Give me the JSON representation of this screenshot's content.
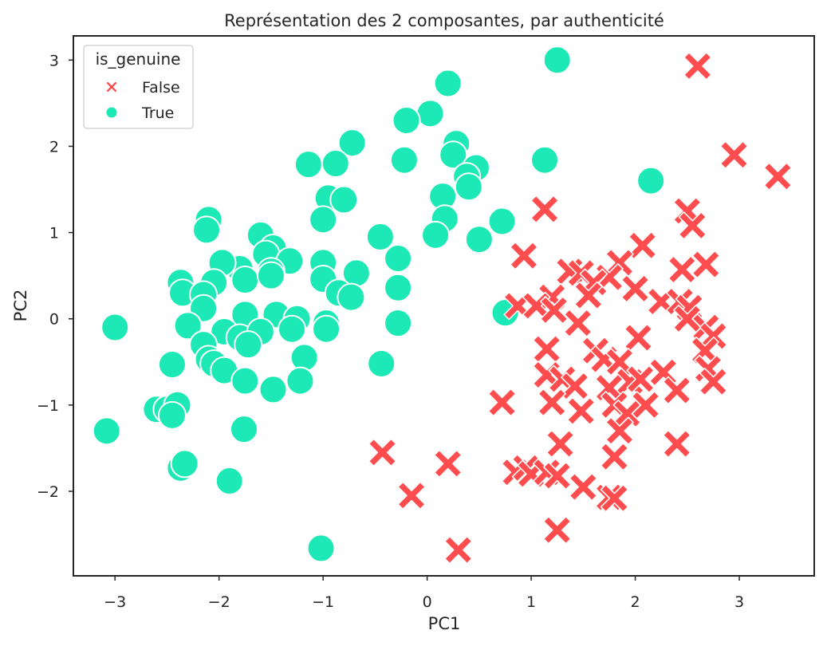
{
  "chart_data": {
    "type": "scatter",
    "title": "Représentation des 2 composantes, par authenticité",
    "xlabel": "PC1",
    "ylabel": "PC2",
    "xlim": [
      -3.4,
      3.72
    ],
    "ylim": [
      -2.98,
      3.28
    ],
    "xticks": [
      -3,
      -2,
      -1,
      0,
      1,
      2,
      3
    ],
    "yticks": [
      -2,
      -1,
      0,
      1,
      2,
      3
    ],
    "xtick_labels": [
      "−3",
      "−2",
      "−1",
      "0",
      "1",
      "2",
      "3"
    ],
    "ytick_labels": [
      "−2",
      "−1",
      "0",
      "1",
      "2",
      "3"
    ],
    "grid": false,
    "legend": {
      "title": "is_genuine",
      "position": "top-left",
      "entries": [
        {
          "label": "False",
          "marker": "x",
          "color": "#ff4d4f"
        },
        {
          "label": "True",
          "marker": "circle",
          "color": "#1de9b6"
        }
      ]
    },
    "series": [
      {
        "name": "True",
        "marker": "circle",
        "color": "#1de9b6",
        "points": [
          [
            1.25,
            3.0
          ],
          [
            0.2,
            2.73
          ],
          [
            0.03,
            2.38
          ],
          [
            -0.2,
            2.3
          ],
          [
            -0.72,
            2.04
          ],
          [
            -0.22,
            1.84
          ],
          [
            0.28,
            2.03
          ],
          [
            0.25,
            1.9
          ],
          [
            0.47,
            1.75
          ],
          [
            0.38,
            1.65
          ],
          [
            -1.14,
            1.79
          ],
          [
            -0.88,
            1.8
          ],
          [
            1.13,
            1.84
          ],
          [
            2.15,
            1.6
          ],
          [
            -0.95,
            1.4
          ],
          [
            -0.8,
            1.38
          ],
          [
            0.4,
            1.53
          ],
          [
            0.15,
            1.42
          ],
          [
            -1.0,
            1.15
          ],
          [
            0.17,
            1.16
          ],
          [
            0.72,
            1.13
          ],
          [
            0.08,
            0.97
          ],
          [
            0.5,
            0.92
          ],
          [
            -2.1,
            1.15
          ],
          [
            -2.12,
            1.03
          ],
          [
            -1.6,
            0.97
          ],
          [
            -0.45,
            0.95
          ],
          [
            -1.48,
            0.82
          ],
          [
            -1.55,
            0.75
          ],
          [
            -1.32,
            0.67
          ],
          [
            -0.28,
            0.7
          ],
          [
            -1.0,
            0.65
          ],
          [
            -1.8,
            0.58
          ],
          [
            -1.97,
            0.65
          ],
          [
            -1.5,
            0.55
          ],
          [
            -0.68,
            0.53
          ],
          [
            -2.37,
            0.42
          ],
          [
            -2.05,
            0.42
          ],
          [
            -1.75,
            0.45
          ],
          [
            -1.5,
            0.5
          ],
          [
            -1.0,
            0.46
          ],
          [
            -0.28,
            0.36
          ],
          [
            -2.35,
            0.3
          ],
          [
            -0.85,
            0.3
          ],
          [
            -2.15,
            0.28
          ],
          [
            -0.73,
            0.25
          ],
          [
            0.75,
            0.07
          ],
          [
            -2.15,
            0.12
          ],
          [
            -1.75,
            0.05
          ],
          [
            -1.45,
            0.05
          ],
          [
            -1.25,
            0.0
          ],
          [
            -0.97,
            -0.05
          ],
          [
            -0.28,
            -0.05
          ],
          [
            -3.0,
            -0.1
          ],
          [
            -2.3,
            -0.08
          ],
          [
            -1.95,
            -0.15
          ],
          [
            -1.8,
            -0.22
          ],
          [
            -1.6,
            -0.15
          ],
          [
            -1.3,
            -0.12
          ],
          [
            -0.97,
            -0.12
          ],
          [
            -2.15,
            -0.3
          ],
          [
            -1.72,
            -0.3
          ],
          [
            -1.18,
            -0.45
          ],
          [
            -2.45,
            -0.53
          ],
          [
            -2.1,
            -0.47
          ],
          [
            -2.05,
            -0.52
          ],
          [
            -1.95,
            -0.6
          ],
          [
            -1.75,
            -0.72
          ],
          [
            -1.22,
            -0.72
          ],
          [
            -1.48,
            -0.82
          ],
          [
            -0.44,
            -0.52
          ],
          [
            -2.6,
            -1.05
          ],
          [
            -2.5,
            -1.05
          ],
          [
            -2.4,
            -1.0
          ],
          [
            -2.45,
            -1.12
          ],
          [
            -3.08,
            -1.3
          ],
          [
            -1.76,
            -1.28
          ],
          [
            -2.37,
            -1.73
          ],
          [
            -2.33,
            -1.68
          ],
          [
            -1.9,
            -1.88
          ],
          [
            -1.02,
            -2.66
          ]
        ]
      },
      {
        "name": "False",
        "marker": "x",
        "color": "#ff4d4f",
        "points": [
          [
            2.6,
            2.93
          ],
          [
            2.95,
            1.9
          ],
          [
            3.37,
            1.65
          ],
          [
            1.13,
            1.27
          ],
          [
            2.5,
            1.25
          ],
          [
            2.55,
            1.08
          ],
          [
            0.93,
            0.73
          ],
          [
            2.07,
            0.85
          ],
          [
            1.85,
            0.65
          ],
          [
            2.68,
            0.63
          ],
          [
            2.45,
            0.57
          ],
          [
            1.37,
            0.55
          ],
          [
            1.48,
            0.53
          ],
          [
            1.75,
            0.48
          ],
          [
            1.6,
            0.42
          ],
          [
            1.55,
            0.27
          ],
          [
            2.0,
            0.35
          ],
          [
            1.2,
            0.25
          ],
          [
            0.87,
            0.15
          ],
          [
            1.05,
            0.15
          ],
          [
            1.22,
            0.1
          ],
          [
            2.25,
            0.2
          ],
          [
            2.43,
            0.2
          ],
          [
            2.52,
            0.13
          ],
          [
            2.5,
            0.0
          ],
          [
            1.45,
            -0.05
          ],
          [
            2.68,
            -0.1
          ],
          [
            2.75,
            -0.2
          ],
          [
            2.03,
            -0.22
          ],
          [
            1.15,
            -0.35
          ],
          [
            1.62,
            -0.37
          ],
          [
            2.67,
            -0.37
          ],
          [
            1.7,
            -0.47
          ],
          [
            1.85,
            -0.5
          ],
          [
            2.7,
            -0.58
          ],
          [
            2.27,
            -0.62
          ],
          [
            1.15,
            -0.65
          ],
          [
            1.3,
            -0.7
          ],
          [
            1.42,
            -0.78
          ],
          [
            1.95,
            -0.73
          ],
          [
            2.05,
            -0.7
          ],
          [
            2.75,
            -0.73
          ],
          [
            1.75,
            -0.8
          ],
          [
            2.4,
            -0.83
          ],
          [
            0.72,
            -0.97
          ],
          [
            1.2,
            -0.97
          ],
          [
            1.8,
            -1.0
          ],
          [
            2.1,
            -1.0
          ],
          [
            1.48,
            -1.07
          ],
          [
            1.92,
            -1.1
          ],
          [
            1.85,
            -1.3
          ],
          [
            2.4,
            -1.45
          ],
          [
            1.28,
            -1.45
          ],
          [
            1.8,
            -1.6
          ],
          [
            -0.43,
            -1.55
          ],
          [
            0.2,
            -1.68
          ],
          [
            0.85,
            -1.78
          ],
          [
            0.95,
            -1.73
          ],
          [
            1.0,
            -1.8
          ],
          [
            1.15,
            -1.78
          ],
          [
            1.25,
            -1.82
          ],
          [
            1.5,
            -1.95
          ],
          [
            1.75,
            -2.07
          ],
          [
            1.8,
            -2.08
          ],
          [
            -0.15,
            -2.05
          ],
          [
            1.25,
            -2.45
          ],
          [
            0.3,
            -2.68
          ]
        ]
      }
    ]
  }
}
